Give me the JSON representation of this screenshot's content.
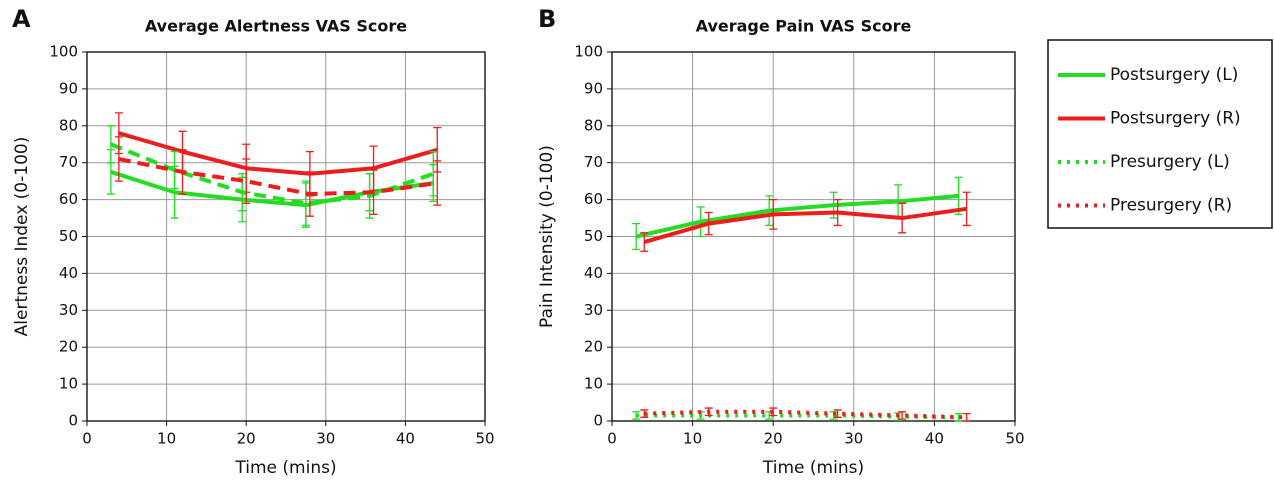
{
  "chart_data": [
    {
      "type": "line",
      "panel_label": "A",
      "title": "Average Alertness VAS Score",
      "x_label": "Time (mins)",
      "y_label": "Alertness Index (0-100)",
      "xlim": [
        0,
        50
      ],
      "xticks": [
        0,
        10,
        20,
        30,
        40,
        50
      ],
      "ylim": [
        0,
        100
      ],
      "yticks": [
        0,
        10,
        20,
        30,
        40,
        50,
        60,
        70,
        80,
        90,
        100
      ],
      "grid": true,
      "series": [
        {
          "name": "Postsurgery (L)",
          "color": "#22dd22",
          "style": "solid",
          "x": [
            3,
            11,
            19.5,
            27.5,
            35.5,
            43.5
          ],
          "values": [
            67.5,
            62,
            60,
            58.5,
            62,
            64.5
          ],
          "errors": [
            6,
            7,
            6,
            6,
            5,
            5
          ]
        },
        {
          "name": "Postsurgery (R)",
          "color": "#ee1c1c",
          "style": "solid",
          "x": [
            4,
            12,
            20,
            28,
            36,
            44
          ],
          "values": [
            78,
            73,
            68.5,
            67,
            68.5,
            73.5
          ],
          "errors": [
            5.5,
            5.5,
            6.5,
            6,
            6,
            6
          ]
        },
        {
          "name": "Presurgery (L)",
          "color": "#22dd22",
          "style": "dashed",
          "x": [
            3,
            11,
            19.5,
            27.5,
            35.5,
            43.5
          ],
          "values": [
            75,
            68,
            62,
            59,
            61,
            67
          ],
          "errors": [
            5,
            5,
            5,
            6,
            6,
            6
          ]
        },
        {
          "name": "Presurgery (R)",
          "color": "#ee1c1c",
          "style": "dashed",
          "x": [
            4,
            12,
            20,
            28,
            36,
            44
          ],
          "values": [
            71,
            67.5,
            65,
            61.5,
            62,
            64.5
          ],
          "errors": [
            6,
            6,
            6,
            6,
            6,
            6
          ]
        }
      ]
    },
    {
      "type": "line",
      "panel_label": "B",
      "title": "Average Pain VAS Score",
      "x_label": "Time (mins)",
      "y_label": "Pain Intensity (0-100)",
      "xlim": [
        0,
        50
      ],
      "xticks": [
        0,
        10,
        20,
        30,
        40,
        50
      ],
      "ylim": [
        0,
        100
      ],
      "yticks": [
        0,
        10,
        20,
        30,
        40,
        50,
        60,
        70,
        80,
        90,
        100
      ],
      "grid": true,
      "series": [
        {
          "color": "#22dd22",
          "style": "solid",
          "x": [
            3,
            11,
            19.5,
            27.5,
            35.5,
            43
          ],
          "values": [
            50,
            54,
            57,
            58.5,
            59.5,
            61
          ],
          "errors": [
            3.5,
            4,
            4,
            3.5,
            4.5,
            5
          ]
        },
        {
          "color": "#ee1c1c",
          "style": "solid",
          "x": [
            4,
            12,
            20,
            28,
            36,
            44
          ],
          "values": [
            48.5,
            53.5,
            56,
            56.5,
            55,
            57.5
          ],
          "errors": [
            2.5,
            3,
            4,
            3.5,
            4,
            4.5
          ]
        },
        {
          "color": "#22dd22",
          "style": "dotted",
          "x": [
            3,
            11,
            19.5,
            27.5,
            35.5,
            43
          ],
          "values": [
            1.5,
            1.5,
            1.5,
            1.5,
            1.2,
            1
          ],
          "errors": [
            1,
            1,
            1,
            1,
            1,
            1
          ]
        },
        {
          "color": "#ee1c1c",
          "style": "dotted",
          "x": [
            4,
            12,
            20,
            28,
            36,
            44
          ],
          "values": [
            2,
            2.5,
            2.5,
            2,
            1.5,
            1
          ],
          "errors": [
            1,
            1,
            1,
            1,
            1,
            1
          ]
        }
      ]
    }
  ]
}
